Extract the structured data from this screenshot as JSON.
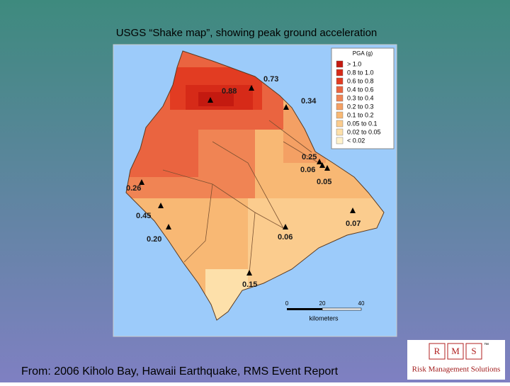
{
  "header": {
    "title": "USGS “Shake map”, showing peak ground acceleration"
  },
  "map": {
    "stations": [
      {
        "label": "0.73"
      },
      {
        "label": "0.88"
      },
      {
        "label": "0.34"
      },
      {
        "label": "0.25"
      },
      {
        "label": "0.06"
      },
      {
        "label": "0.05"
      },
      {
        "label": "0.26"
      },
      {
        "label": "0.45"
      },
      {
        "label": "0.20"
      },
      {
        "label": "0.06"
      },
      {
        "label": "0.07"
      },
      {
        "label": "0.15"
      }
    ],
    "legend": {
      "title": "PGA (g)",
      "entries": [
        {
          "label": "> 1.0",
          "color": "#c41a10"
        },
        {
          "label": "0.8 to 1.0",
          "color": "#d62a18"
        },
        {
          "label": "0.6 to 0.8",
          "color": "#e23c22"
        },
        {
          "label": "0.4 to 0.6",
          "color": "#ea6440"
        },
        {
          "label": "0.3 to 0.4",
          "color": "#f08454"
        },
        {
          "label": "0.2 to 0.3",
          "color": "#f4a064"
        },
        {
          "label": "0.1 to 0.2",
          "color": "#f8b874"
        },
        {
          "label": "0.05 to 0.1",
          "color": "#fbcc8e"
        },
        {
          "label": "0.02 to 0.05",
          "color": "#fde0aa"
        },
        {
          "label": "< 0.02",
          "color": "#fff2cc"
        }
      ]
    },
    "scale": {
      "ticks": [
        "0",
        "20",
        "40"
      ],
      "unit": "kilometers"
    }
  },
  "footer": {
    "source": "From: 2006 Kiholo Bay, Hawaii Earthquake, RMS Event Report"
  },
  "logo": {
    "letters": [
      "R",
      "M",
      "S"
    ],
    "name": "Risk Management Solutions",
    "mark": "™"
  }
}
